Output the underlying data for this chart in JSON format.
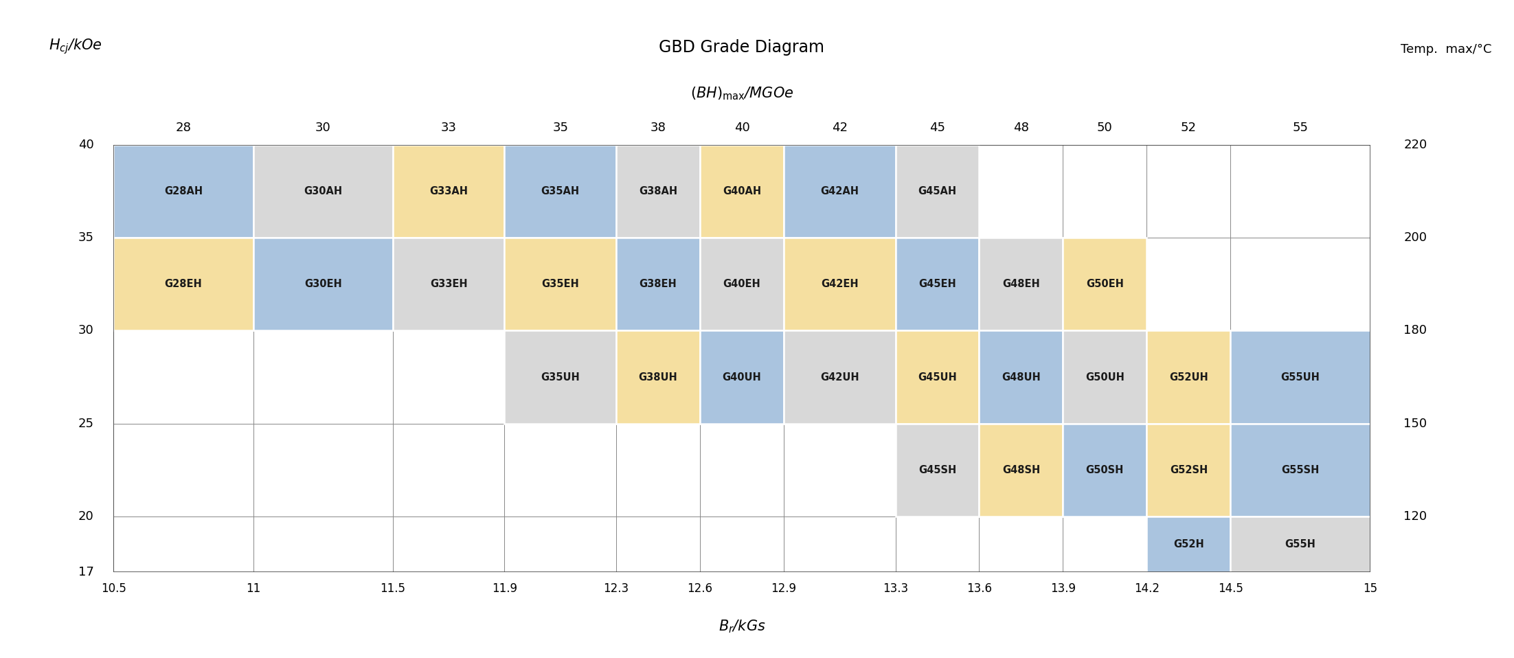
{
  "title": "GBD Grade Diagram",
  "temp_label": "Temp.  max/°C",
  "bh_cols": [
    28,
    30,
    33,
    35,
    38,
    40,
    42,
    45,
    48,
    50,
    52,
    55
  ],
  "br_cols": [
    10.5,
    11,
    11.5,
    11.9,
    12.3,
    12.6,
    12.9,
    13.3,
    13.6,
    13.9,
    14.2,
    14.5,
    15
  ],
  "hcj_rows": [
    40,
    35,
    30,
    25,
    20,
    17
  ],
  "temp_vals": [
    220,
    200,
    180,
    150,
    120
  ],
  "temp_hcj": [
    40,
    35,
    30,
    25,
    20
  ],
  "cells": [
    {
      "label": "G28AH",
      "bh_idx": 0,
      "hcj": 40,
      "color": "#aac4df"
    },
    {
      "label": "G30AH",
      "bh_idx": 1,
      "hcj": 40,
      "color": "#d8d8d8"
    },
    {
      "label": "G33AH",
      "bh_idx": 2,
      "hcj": 40,
      "color": "#f5dfa0"
    },
    {
      "label": "G35AH",
      "bh_idx": 3,
      "hcj": 40,
      "color": "#aac4df"
    },
    {
      "label": "G38AH",
      "bh_idx": 4,
      "hcj": 40,
      "color": "#d8d8d8"
    },
    {
      "label": "G40AH",
      "bh_idx": 5,
      "hcj": 40,
      "color": "#f5dfa0"
    },
    {
      "label": "G42AH",
      "bh_idx": 6,
      "hcj": 40,
      "color": "#aac4df"
    },
    {
      "label": "G45AH",
      "bh_idx": 7,
      "hcj": 40,
      "color": "#d8d8d8"
    },
    {
      "label": "G28EH",
      "bh_idx": 0,
      "hcj": 35,
      "color": "#f5dfa0"
    },
    {
      "label": "G30EH",
      "bh_idx": 1,
      "hcj": 35,
      "color": "#aac4df"
    },
    {
      "label": "G33EH",
      "bh_idx": 2,
      "hcj": 35,
      "color": "#d8d8d8"
    },
    {
      "label": "G35EH",
      "bh_idx": 3,
      "hcj": 35,
      "color": "#f5dfa0"
    },
    {
      "label": "G38EH",
      "bh_idx": 4,
      "hcj": 35,
      "color": "#aac4df"
    },
    {
      "label": "G40EH",
      "bh_idx": 5,
      "hcj": 35,
      "color": "#d8d8d8"
    },
    {
      "label": "G42EH",
      "bh_idx": 6,
      "hcj": 35,
      "color": "#f5dfa0"
    },
    {
      "label": "G45EH",
      "bh_idx": 7,
      "hcj": 35,
      "color": "#aac4df"
    },
    {
      "label": "G48EH",
      "bh_idx": 8,
      "hcj": 35,
      "color": "#d8d8d8"
    },
    {
      "label": "G50EH",
      "bh_idx": 9,
      "hcj": 35,
      "color": "#f5dfa0"
    },
    {
      "label": "G35UH",
      "bh_idx": 3,
      "hcj": 30,
      "color": "#d8d8d8"
    },
    {
      "label": "G38UH",
      "bh_idx": 4,
      "hcj": 30,
      "color": "#f5dfa0"
    },
    {
      "label": "G40UH",
      "bh_idx": 5,
      "hcj": 30,
      "color": "#aac4df"
    },
    {
      "label": "G42UH",
      "bh_idx": 6,
      "hcj": 30,
      "color": "#d8d8d8"
    },
    {
      "label": "G45UH",
      "bh_idx": 7,
      "hcj": 30,
      "color": "#f5dfa0"
    },
    {
      "label": "G48UH",
      "bh_idx": 8,
      "hcj": 30,
      "color": "#aac4df"
    },
    {
      "label": "G50UH",
      "bh_idx": 9,
      "hcj": 30,
      "color": "#d8d8d8"
    },
    {
      "label": "G52UH",
      "bh_idx": 10,
      "hcj": 30,
      "color": "#f5dfa0"
    },
    {
      "label": "G55UH",
      "bh_idx": 11,
      "hcj": 30,
      "color": "#aac4df"
    },
    {
      "label": "G45SH",
      "bh_idx": 7,
      "hcj": 25,
      "color": "#d8d8d8"
    },
    {
      "label": "G48SH",
      "bh_idx": 8,
      "hcj": 25,
      "color": "#f5dfa0"
    },
    {
      "label": "G50SH",
      "bh_idx": 9,
      "hcj": 25,
      "color": "#aac4df"
    },
    {
      "label": "G52SH",
      "bh_idx": 10,
      "hcj": 25,
      "color": "#f5dfa0"
    },
    {
      "label": "G55SH",
      "bh_idx": 11,
      "hcj": 25,
      "color": "#aac4df"
    },
    {
      "label": "G52H",
      "bh_idx": 10,
      "hcj": 20,
      "color": "#aac4df"
    },
    {
      "label": "G55H",
      "bh_idx": 11,
      "hcj": 20,
      "color": "#d8d8d8"
    }
  ],
  "hcj_top_map": {
    "40": 40,
    "35": 35,
    "30": 30,
    "25": 25,
    "20": 20
  },
  "hcj_bot_map": {
    "40": 35,
    "35": 30,
    "30": 25,
    "25": 20,
    "20": 17
  },
  "background_color": "#ffffff",
  "cell_text_color": "#1a1a1a",
  "grid_color": "#888888",
  "border_color": "#444444",
  "cell_fontsize": 10.5,
  "axis_tick_fontsize": 13,
  "title_fontsize": 17,
  "label_fontsize": 15,
  "temp_fontsize": 13
}
